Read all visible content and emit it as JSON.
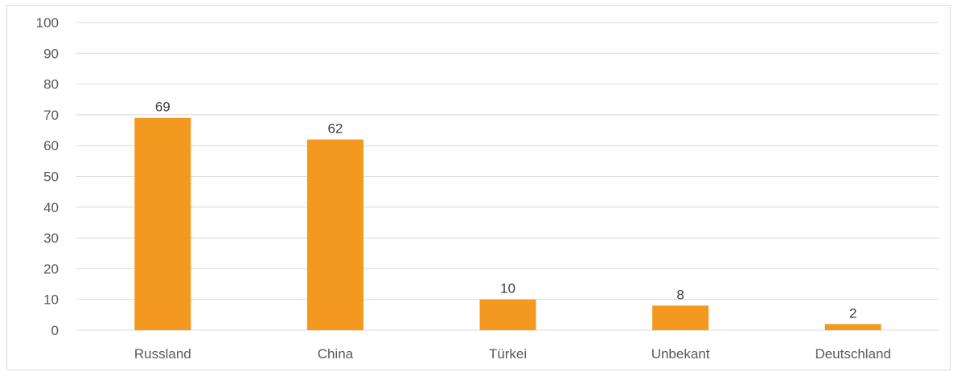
{
  "chart_data": {
    "type": "bar",
    "title": "",
    "xlabel": "",
    "ylabel": "",
    "categories": [
      "Russland",
      "China",
      "Türkei",
      "Unbekant",
      "Deutschland"
    ],
    "values": [
      69,
      62,
      10,
      8,
      2
    ],
    "data_labels": [
      "69",
      "62",
      "10",
      "8",
      "2"
    ],
    "ylim": [
      0,
      100
    ],
    "yticks": [
      "0",
      "10",
      "20",
      "30",
      "40",
      "50",
      "60",
      "70",
      "80",
      "90",
      "100"
    ],
    "grid": true,
    "legend": "none",
    "bar_color": "#F4991F",
    "grid_color": "#D9D9D9"
  }
}
